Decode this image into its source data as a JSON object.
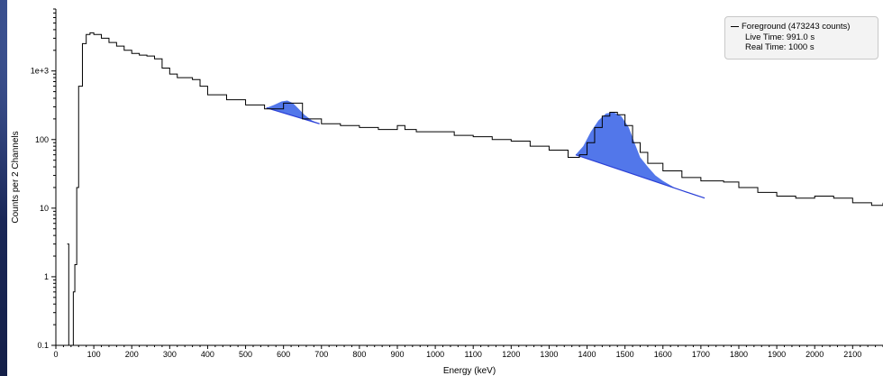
{
  "chart_data": {
    "type": "line",
    "xlabel": "Energy (keV)",
    "ylabel": "Counts per 2 Channels",
    "y_scale": "log",
    "xlim": [
      0,
      2180
    ],
    "ylim": [
      0.1,
      8000
    ],
    "x_ticks": [
      0,
      100,
      200,
      300,
      400,
      500,
      600,
      700,
      800,
      900,
      1000,
      1100,
      1200,
      1300,
      1400,
      1500,
      1600,
      1700,
      1800,
      1900,
      2000,
      2100
    ],
    "x_tick_labels": [
      "0",
      "100",
      "200",
      "300",
      "400",
      "500",
      "600",
      "700",
      "800",
      "900",
      "1000",
      "1100",
      "1200",
      "1300",
      "1400",
      "1500",
      "1600",
      "1700",
      "1800",
      "1900",
      "2000",
      "2100"
    ],
    "y_ticks": [
      0.1,
      1,
      10,
      100,
      1000
    ],
    "y_tick_labels": [
      "0.1",
      "1",
      "10",
      "100",
      "1e+3"
    ],
    "grid": false,
    "legend_position": "top-right",
    "series": [
      {
        "name": "Foreground (473243 counts)",
        "color": "#000000",
        "x": [
          30,
          34,
          38,
          42,
          46,
          50,
          55,
          60,
          70,
          80,
          90,
          100,
          120,
          140,
          160,
          180,
          200,
          220,
          240,
          260,
          280,
          300,
          320,
          340,
          360,
          380,
          400,
          450,
          500,
          550,
          600,
          650,
          700,
          750,
          800,
          850,
          900,
          920,
          950,
          1000,
          1050,
          1100,
          1150,
          1200,
          1250,
          1300,
          1350,
          1380,
          1400,
          1420,
          1440,
          1460,
          1480,
          1500,
          1520,
          1540,
          1560,
          1600,
          1650,
          1700,
          1760,
          1800,
          1850,
          1900,
          1950,
          2000,
          2050,
          2100,
          2150,
          2180
        ],
        "y": [
          3,
          0.1,
          0.1,
          0.1,
          0.6,
          1.5,
          20,
          600,
          2500,
          3400,
          3600,
          3400,
          3000,
          2600,
          2300,
          2000,
          1800,
          1700,
          1650,
          1500,
          1100,
          900,
          800,
          800,
          750,
          600,
          450,
          380,
          320,
          280,
          340,
          200,
          170,
          160,
          150,
          140,
          160,
          140,
          130,
          130,
          115,
          110,
          100,
          95,
          80,
          70,
          55,
          60,
          90,
          150,
          220,
          250,
          230,
          160,
          90,
          65,
          45,
          35,
          28,
          25,
          24,
          20,
          17,
          15,
          14,
          15,
          14,
          12,
          11,
          12
        ]
      }
    ],
    "peaks": [
      {
        "x": [
          555,
          575,
          595,
          610,
          625,
          640,
          655,
          675,
          695
        ],
        "y": [
          290,
          320,
          360,
          370,
          340,
          280,
          230,
          190,
          170
        ]
      },
      {
        "x": [
          1370,
          1390,
          1410,
          1430,
          1450,
          1470,
          1490,
          1510,
          1525,
          1540,
          1560,
          1580,
          1600,
          1630,
          1660,
          1690,
          1710
        ],
        "y": [
          60,
          80,
          130,
          190,
          240,
          250,
          220,
          150,
          90,
          55,
          40,
          30,
          25,
          20,
          17,
          15,
          14
        ]
      }
    ],
    "peak_color": "#5277ea",
    "peak_edge": "#2a3fd6",
    "legend": {
      "title": "Foreground (473243 counts)",
      "lines": [
        "Live Time: 991.0 s",
        "Real Time: 1000 s"
      ]
    }
  }
}
